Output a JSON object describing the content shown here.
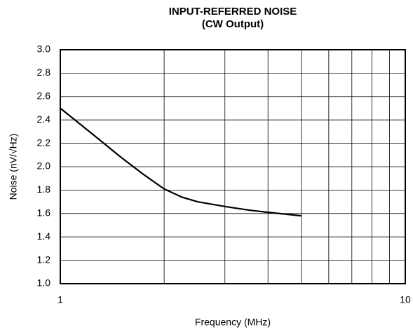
{
  "chart_data": {
    "type": "line",
    "title": "INPUT-REFERRED NOISE",
    "subtitle": "(CW Output)",
    "x_label": "Frequency (MHz)",
    "y_label": "Noise (nV/√Hz)",
    "x": [
      1,
      1.25,
      1.5,
      1.75,
      2,
      2.25,
      2.5,
      3,
      3.5,
      4,
      5
    ],
    "series": [
      {
        "name": "Noise",
        "color": "#000000",
        "values": [
          2.5,
          2.27,
          2.08,
          1.93,
          1.81,
          1.74,
          1.7,
          1.66,
          1.63,
          1.61,
          1.58
        ]
      }
    ],
    "xscale": "log",
    "xlim": [
      1,
      10
    ],
    "xticks": [
      1,
      10
    ],
    "xminorticks": [
      2,
      3,
      4,
      5,
      6,
      7,
      8,
      9
    ],
    "ylim": [
      1.0,
      3.0
    ],
    "yticks": [
      {
        "value": 1.0,
        "label": "1.0"
      },
      {
        "value": 1.2,
        "label": "1.2"
      },
      {
        "value": 1.4,
        "label": "1.4"
      },
      {
        "value": 1.6,
        "label": "1.6"
      },
      {
        "value": 1.8,
        "label": "1.8"
      },
      {
        "value": 2.0,
        "label": "2.0"
      },
      {
        "value": 2.2,
        "label": "2.2"
      },
      {
        "value": 2.4,
        "label": "2.4"
      },
      {
        "value": 2.6,
        "label": "2.6"
      },
      {
        "value": 2.8,
        "label": "2.8"
      },
      {
        "value": 3.0,
        "label": "3.0"
      }
    ],
    "grid": true
  }
}
